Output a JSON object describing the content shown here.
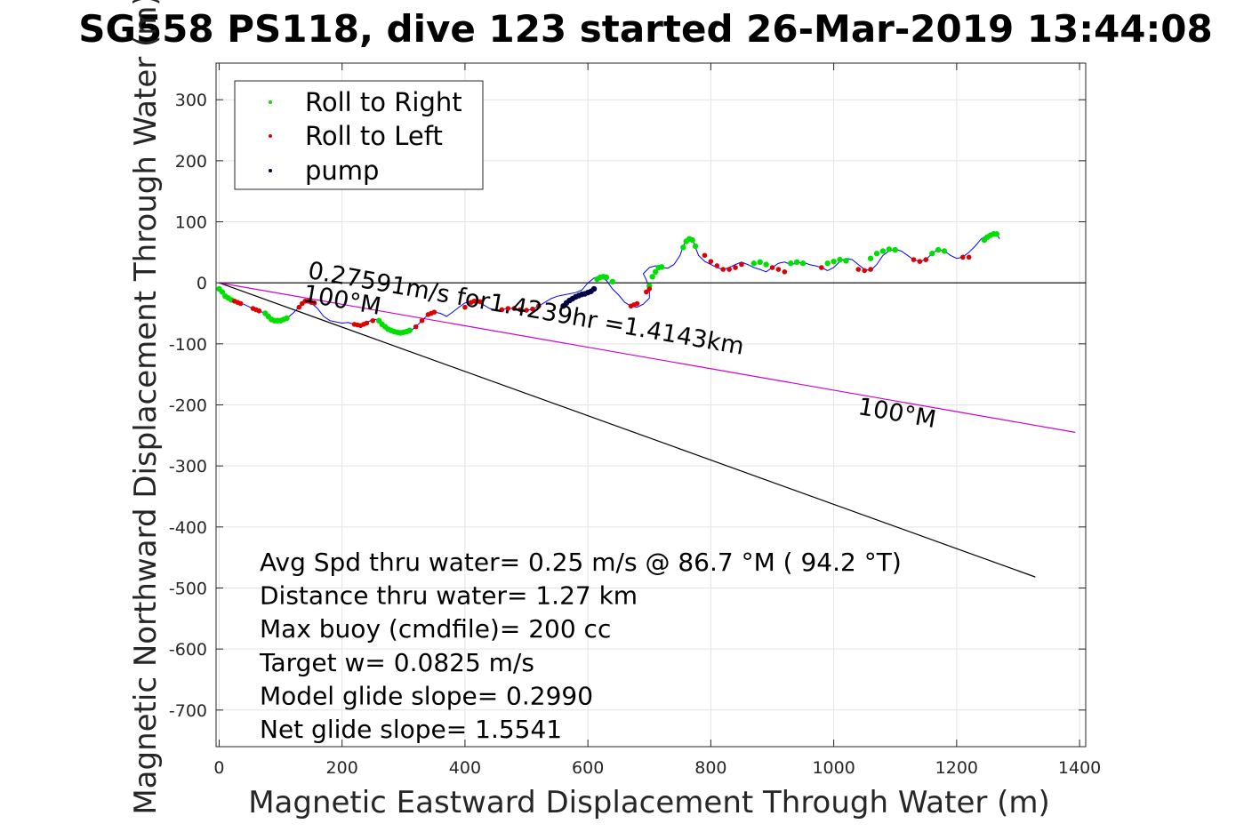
{
  "chart_data": {
    "type": "scatter",
    "title": "SG558 PS118, dive 123 started 26-Mar-2019 13:44:08",
    "xlabel": "Magnetic Eastward Displacement Through Water (m)",
    "ylabel": "Magnetic Northward Displacement Through Water (m)",
    "xlim": [
      -5,
      1410
    ],
    "ylim": [
      -760,
      360
    ],
    "xticks": [
      0,
      200,
      400,
      600,
      800,
      1000,
      1200,
      1400
    ],
    "yticks": [
      300,
      200,
      100,
      0,
      -100,
      -200,
      -300,
      -400,
      -500,
      -600,
      -700
    ],
    "grid": true,
    "legend_position": "top-left",
    "legend": [
      {
        "label": "Roll to Right",
        "color": "#00e000"
      },
      {
        "label": "Roll to Left",
        "color": "#e00000"
      },
      {
        "label": "pump",
        "color": "#000040"
      }
    ],
    "track": {
      "color": "#0000ff",
      "x": [
        0,
        10,
        20,
        30,
        40,
        50,
        60,
        70,
        80,
        90,
        100,
        110,
        120,
        130,
        140,
        150,
        160,
        170,
        180,
        190,
        200,
        210,
        220,
        230,
        240,
        250,
        260,
        270,
        280,
        290,
        300,
        310,
        320,
        330,
        340,
        350,
        360,
        370,
        380,
        390,
        400,
        410,
        420,
        430,
        440,
        450,
        460,
        470,
        480,
        490,
        500,
        510,
        520,
        530,
        540,
        550,
        560,
        570,
        580,
        590,
        600,
        610,
        620,
        630,
        640,
        650,
        660,
        670,
        680,
        690,
        700,
        700,
        695,
        690,
        700,
        710,
        720,
        730,
        740,
        750,
        755,
        760,
        770,
        775,
        780,
        790,
        800,
        810,
        820,
        830,
        840,
        850,
        860,
        870,
        880,
        890,
        900,
        910,
        920,
        930,
        940,
        950,
        960,
        970,
        980,
        990,
        1000,
        1010,
        1020,
        1030,
        1040,
        1050,
        1060,
        1070,
        1080,
        1090,
        1100,
        1110,
        1120,
        1130,
        1140,
        1150,
        1160,
        1170,
        1180,
        1190,
        1200,
        1210,
        1220,
        1230,
        1240,
        1250,
        1260,
        1265,
        1270
      ],
      "y": [
        -10,
        -22,
        -28,
        -32,
        -35,
        -40,
        -44,
        -48,
        -55,
        -62,
        -62,
        -58,
        -50,
        -40,
        -30,
        -33,
        -42,
        -55,
        -62,
        -64,
        -66,
        -65,
        -68,
        -70,
        -65,
        -60,
        -60,
        -70,
        -78,
        -80,
        -82,
        -80,
        -72,
        -62,
        -52,
        -48,
        -50,
        -55,
        -48,
        -40,
        -33,
        -30,
        -30,
        -36,
        -42,
        -45,
        -44,
        -42,
        -42,
        -44,
        -45,
        -43,
        -38,
        -32,
        -26,
        -22,
        -20,
        -18,
        -16,
        -12,
        0,
        8,
        10,
        4,
        -10,
        -20,
        -32,
        -38,
        -40,
        -35,
        -25,
        -10,
        5,
        15,
        25,
        28,
        25,
        24,
        30,
        45,
        60,
        70,
        72,
        58,
        45,
        35,
        30,
        25,
        22,
        25,
        30,
        34,
        30,
        25,
        22,
        18,
        25,
        32,
        34,
        30,
        32,
        34,
        30,
        28,
        25,
        20,
        25,
        35,
        40,
        38,
        30,
        22,
        20,
        30,
        45,
        52,
        55,
        52,
        45,
        38,
        35,
        38,
        48,
        55,
        52,
        45,
        40,
        42,
        50,
        60,
        72,
        78,
        82,
        80,
        72
      ]
    },
    "roll_right": {
      "color": "#00e000",
      "x": [
        0,
        5,
        10,
        15,
        20,
        75,
        80,
        85,
        90,
        95,
        100,
        105,
        110,
        260,
        265,
        270,
        275,
        280,
        285,
        290,
        295,
        300,
        305,
        310,
        615,
        620,
        625,
        630,
        640,
        700,
        705,
        710,
        715,
        720,
        755,
        760,
        765,
        770,
        775,
        870,
        880,
        890,
        930,
        940,
        950,
        990,
        1000,
        1010,
        1020,
        1060,
        1070,
        1080,
        1090,
        1100,
        1160,
        1170,
        1180,
        1245,
        1250,
        1255,
        1260,
        1265
      ],
      "y": [
        -10,
        -15,
        -22,
        -25,
        -28,
        -50,
        -55,
        -60,
        -62,
        -62,
        -62,
        -60,
        -58,
        -62,
        -68,
        -72,
        -76,
        -78,
        -80,
        -81,
        -82,
        -81,
        -80,
        -78,
        6,
        9,
        10,
        9,
        2,
        -5,
        10,
        18,
        25,
        26,
        58,
        68,
        72,
        70,
        60,
        32,
        34,
        30,
        32,
        34,
        32,
        32,
        35,
        38,
        36,
        40,
        48,
        52,
        55,
        54,
        48,
        54,
        52,
        70,
        75,
        78,
        80,
        80
      ]
    },
    "roll_left": {
      "color": "#e00000",
      "x": [
        25,
        30,
        35,
        55,
        60,
        65,
        130,
        135,
        140,
        145,
        150,
        155,
        220,
        225,
        230,
        235,
        240,
        250,
        320,
        330,
        340,
        345,
        350,
        400,
        410,
        415,
        420,
        425,
        460,
        470,
        480,
        490,
        500,
        510,
        520,
        670,
        675,
        680,
        695,
        700,
        790,
        800,
        810,
        820,
        830,
        840,
        850,
        900,
        910,
        920,
        980,
        1040,
        1050,
        1060,
        1130,
        1140,
        1150,
        1210,
        1220
      ],
      "y": [
        -30,
        -32,
        -34,
        -42,
        -44,
        -46,
        -40,
        -34,
        -30,
        -30,
        -32,
        -33,
        -68,
        -69,
        -70,
        -68,
        -66,
        -62,
        -72,
        -62,
        -52,
        -50,
        -48,
        -40,
        -32,
        -30,
        -30,
        -31,
        -44,
        -42,
        -42,
        -44,
        -45,
        -43,
        -38,
        -38,
        -36,
        -34,
        -15,
        -10,
        45,
        35,
        28,
        22,
        22,
        25,
        30,
        25,
        22,
        18,
        25,
        22,
        20,
        22,
        38,
        35,
        38,
        42,
        42
      ]
    },
    "pump": {
      "color": "#000040",
      "x": [
        560,
        565,
        570,
        575,
        580,
        585,
        590,
        595,
        600,
        605,
        610
      ],
      "y": [
        -38,
        -33,
        -29,
        -26,
        -23,
        -21,
        -19,
        -18,
        -16,
        -14,
        -10
      ]
    },
    "lines": [
      {
        "name": "",
        "color": "#000000",
        "x": [
          0,
          1410
        ],
        "y": [
          0,
          0
        ]
      },
      {
        "name": "",
        "color": "#000000",
        "x": [
          0,
          1328
        ],
        "y": [
          0,
          -482
        ]
      },
      {
        "name": "",
        "color": "#cc00cc",
        "x": [
          0,
          1393
        ],
        "y": [
          0,
          -245
        ]
      }
    ],
    "annotations": [
      {
        "text": "0.27591m/s for1.4239hr =1.4143km",
        "x": 143,
        "y": 8,
        "rotation": 10
      },
      {
        "text": "100°M",
        "x": 135,
        "y": -30,
        "rotation": 10
      },
      {
        "text": "100°M",
        "x": 1038,
        "y": -215,
        "rotation": 10
      }
    ],
    "stats": [
      "Avg Spd thru water=  0.25 m/s @  86.7 °M ( 94.2 °T)",
      "Distance thru water=  1.27 km",
      "Max buoy (cmdfile)= 200 cc",
      "Target w= 0.0825 m/s",
      "Model glide slope= 0.2990",
      "Net glide slope= 1.5541"
    ]
  }
}
